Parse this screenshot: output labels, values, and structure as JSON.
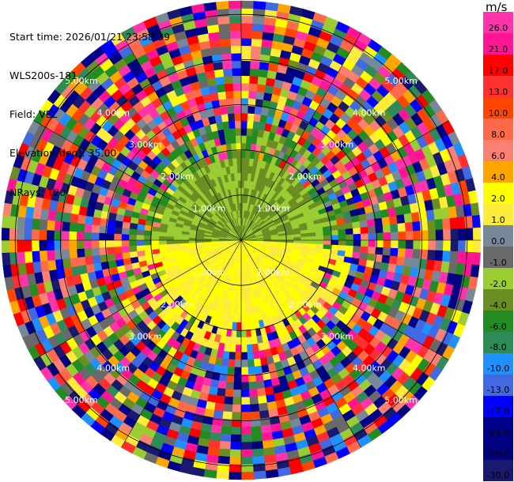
{
  "header": {
    "start_time": "Start time: 2026/01/21 23:58:39",
    "instrument": "WLS200s-181",
    "field": "Field: VEL",
    "elevation": "Elevation(deg): 35.00",
    "nrays": "NRays: 120"
  },
  "colorbar": {
    "unit": "m/s",
    "bins": [
      {
        "label": "26.0",
        "color": "#ff33aa"
      },
      {
        "label": "21.0",
        "color": "#ff1493"
      },
      {
        "label": "17.0",
        "color": "#ff0000"
      },
      {
        "label": "13.0",
        "color": "#ff3030"
      },
      {
        "label": "10.0",
        "color": "#ff4500"
      },
      {
        "label": "8.0",
        "color": "#ff6a4a"
      },
      {
        "label": "6.0",
        "color": "#fa8072"
      },
      {
        "label": "4.0",
        "color": "#ffa500"
      },
      {
        "label": "2.0",
        "color": "#ffff00"
      },
      {
        "label": "1.0",
        "color": "#ffeb3b"
      },
      {
        "label": "0.0",
        "color": "#778899"
      },
      {
        "label": "-1.0",
        "color": "#696969"
      },
      {
        "label": "-2.0",
        "color": "#9acd32"
      },
      {
        "label": "-4.0",
        "color": "#6b8e23"
      },
      {
        "label": "-6.0",
        "color": "#228b22"
      },
      {
        "label": "-8.0",
        "color": "#2e8b57"
      },
      {
        "label": "-10.0",
        "color": "#1e90ff"
      },
      {
        "label": "-13.0",
        "color": "#4169e1"
      },
      {
        "label": "-17.0",
        "color": "#0000ff"
      },
      {
        "label": "-21.0",
        "color": "#00008b"
      },
      {
        "label": "-26.0",
        "color": "#000080"
      },
      {
        "label": "-30.0",
        "color": "#191970"
      }
    ]
  },
  "chart_data": {
    "type": "heatmap",
    "projection": "polar PPI",
    "field": "VEL",
    "units": "m/s",
    "n_rays": 120,
    "elevation_deg": 35.0,
    "range_rings_km": [
      1,
      2,
      3,
      4,
      5
    ],
    "ring_labels": [
      "1.00km",
      "2.00km",
      "3.00km",
      "4.00km",
      "5.00km"
    ],
    "vmin": -30.0,
    "vmax": 30.0,
    "max_range_km": 5.3,
    "gates": 32,
    "near_field": {
      "north_half": "olive/green -2 to -4 m/s",
      "south_half": "yellow 1 to 2 m/s"
    },
    "far_field": "noisy, full color range"
  }
}
